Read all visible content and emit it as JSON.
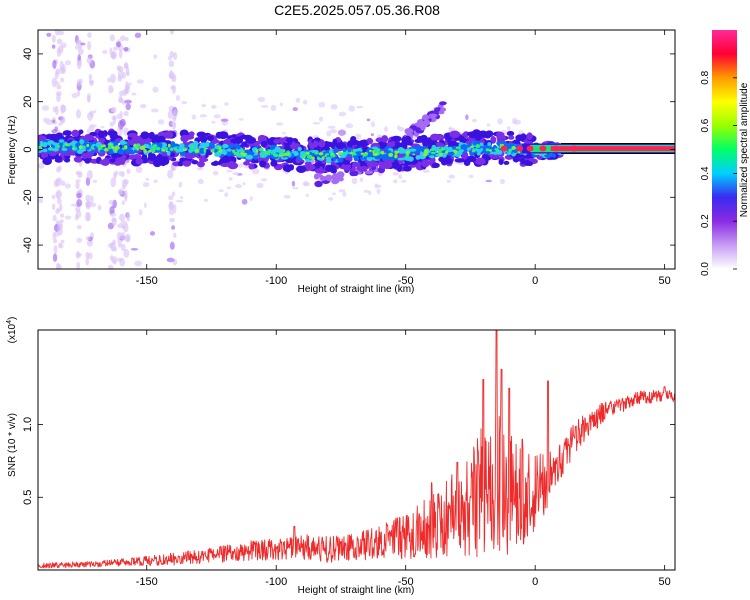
{
  "title": "C2E5.2025.057.05.36.R08",
  "colors": {
    "snr_line": "#ee2a2a",
    "dense_band_core": "#2ad0e8",
    "strong_line": "#ff2255"
  },
  "chart_data": [
    {
      "type": "heatmap",
      "name": "spectrogram",
      "title": "C2E5.2025.057.05.36.R08",
      "xlabel": "Height of straight line (km)",
      "ylabel": "Frequency (Hz)",
      "xlim": [
        -192,
        54
      ],
      "ylim": [
        -50,
        50
      ],
      "xticks": [
        -150,
        -100,
        -50,
        0,
        50
      ],
      "yticks": [
        -40,
        -20,
        0,
        20,
        40
      ],
      "colorbar": {
        "label": "Normalized spectral amplitude",
        "range": [
          0,
          1
        ],
        "ticks": [
          0.0,
          0.2,
          0.4,
          0.6,
          0.8
        ],
        "colormap": [
          "#ffffff",
          "#c89cf5",
          "#8a2be2",
          "#3a2bf0",
          "#00cfff",
          "#00ff66",
          "#9aff00",
          "#ffff00",
          "#ff9a00",
          "#ff0033",
          "#ff2a99"
        ]
      },
      "band_center_hz": [
        [
          -190,
          1.5
        ],
        [
          -170,
          1.0
        ],
        [
          -150,
          0.5
        ],
        [
          -130,
          0.3
        ],
        [
          -110,
          -1.0
        ],
        [
          -90,
          -2.0
        ],
        [
          -80,
          -3.0
        ],
        [
          -70,
          -2.0
        ],
        [
          -60,
          -1.5
        ],
        [
          -50,
          -2.0
        ],
        [
          -40,
          -1.0
        ],
        [
          -30,
          0.0
        ],
        [
          -20,
          0.8
        ],
        [
          -10,
          0.5
        ],
        [
          0,
          -0.5
        ],
        [
          10,
          -0.5
        ],
        [
          20,
          0.4
        ],
        [
          54,
          0.4
        ]
      ],
      "secondary_branch_hz": [
        [
          -85,
          -13
        ],
        [
          -75,
          -11
        ],
        [
          -60,
          -7
        ],
        [
          -45,
          -4
        ]
      ],
      "upper_excursion_hz": [
        [
          -50,
          5
        ],
        [
          -42,
          12
        ],
        [
          -35,
          18
        ]
      ],
      "grid": false,
      "legend": "colorbar-right"
    },
    {
      "type": "line",
      "name": "snr",
      "xlabel": "Height of straight line (km)",
      "ylabel": "SNR (10 * v/v)",
      "y_multiplier": "(x10^4)",
      "xlim": [
        -192,
        54
      ],
      "ylim": [
        0,
        16500
      ],
      "xticks": [
        -150,
        -100,
        -50,
        0,
        50
      ],
      "yticks": [
        5000,
        10000
      ],
      "ytick_labels": [
        "0.5",
        "1.0"
      ],
      "envelope_x": [
        -192,
        -170,
        -150,
        -130,
        -110,
        -100,
        -90,
        -80,
        -70,
        -60,
        -50,
        -40,
        -30,
        -25,
        -20,
        -15,
        -10,
        -5,
        0,
        5,
        10,
        15,
        20,
        25,
        30,
        40,
        50,
        54
      ],
      "envelope_mean": [
        300,
        400,
        600,
        900,
        1300,
        1500,
        1600,
        1400,
        1600,
        1900,
        2300,
        3000,
        4000,
        4500,
        5500,
        6000,
        5500,
        5000,
        5500,
        6000,
        7500,
        9000,
        10000,
        10700,
        11200,
        11800,
        12000,
        11900
      ],
      "envelope_spread": [
        200,
        200,
        350,
        500,
        700,
        800,
        900,
        900,
        900,
        1200,
        1600,
        2200,
        3000,
        4000,
        4500,
        5000,
        4500,
        3500,
        3000,
        2000,
        1300,
        1100,
        900,
        800,
        600,
        500,
        400,
        400
      ],
      "peaks": [
        [
          -93,
          3000
        ],
        [
          -40,
          6000
        ],
        [
          -30,
          7400
        ],
        [
          -20,
          13100
        ],
        [
          -15,
          16500
        ],
        [
          -13,
          13800
        ],
        [
          -10,
          12500
        ],
        [
          -5,
          9000
        ],
        [
          5,
          13000
        ],
        [
          15,
          9200
        ],
        [
          20,
          10100
        ],
        [
          50,
          12600
        ]
      ],
      "grid": false
    }
  ]
}
